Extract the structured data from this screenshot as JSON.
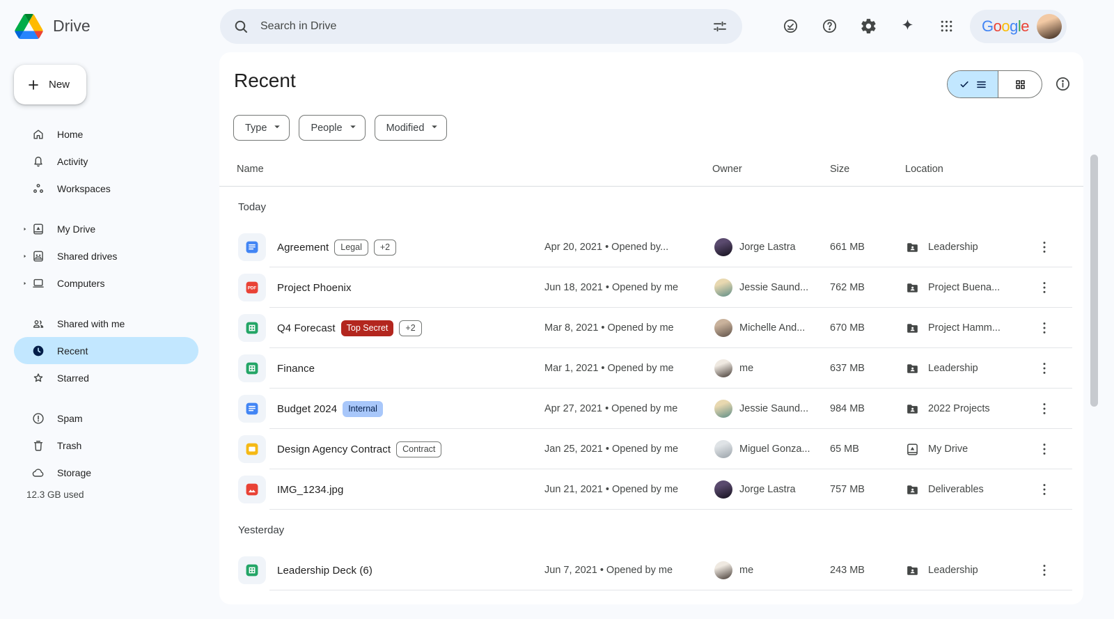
{
  "brand": {
    "app_name": "Drive"
  },
  "topbar": {
    "search_placeholder": "Search in Drive",
    "action_icons": [
      "offline-check",
      "help",
      "settings",
      "gemini-sparkle",
      "apps-grid"
    ],
    "account": {
      "google_letters": [
        [
          "G",
          "#4285F4"
        ],
        [
          "o",
          "#EA4335"
        ],
        [
          "o",
          "#FBBC04"
        ],
        [
          "g",
          "#4285F4"
        ],
        [
          "l",
          "#34A853"
        ],
        [
          "e",
          "#EA4335"
        ]
      ]
    }
  },
  "sidebar": {
    "new_button_label": "New",
    "sections": [
      [
        {
          "icon": "home",
          "label": "Home"
        },
        {
          "icon": "bell",
          "label": "Activity"
        },
        {
          "icon": "workspaces",
          "label": "Workspaces"
        }
      ],
      [
        {
          "icon": "my-drive",
          "label": "My Drive",
          "caret": true
        },
        {
          "icon": "shared-drives",
          "label": "Shared drives",
          "caret": true
        },
        {
          "icon": "computers",
          "label": "Computers",
          "caret": true
        }
      ],
      [
        {
          "icon": "people",
          "label": "Shared with me"
        },
        {
          "icon": "clock",
          "label": "Recent",
          "selected": true
        },
        {
          "icon": "star",
          "label": "Starred"
        }
      ],
      [
        {
          "icon": "spam",
          "label": "Spam"
        },
        {
          "icon": "trash",
          "label": "Trash"
        },
        {
          "icon": "cloud",
          "label": "Storage"
        }
      ]
    ],
    "storage_used": "12.3 GB used"
  },
  "main": {
    "title": "Recent",
    "filters": [
      "Type",
      "People",
      "Modified"
    ],
    "columns": {
      "name": "Name",
      "owner": "Owner",
      "size": "Size",
      "location": "Location"
    },
    "groups": [
      {
        "label": "Today",
        "rows": [
          {
            "name": "Agreement",
            "file_icon": "doc",
            "badges": [
              {
                "text": "Legal",
                "style": "outline"
              },
              {
                "text": "+2",
                "style": "outline"
              }
            ],
            "modified": "Apr 20, 2021  •  Opened by...",
            "owner": "Jorge Lastra",
            "avatar": "jorge",
            "size": "661 MB",
            "location": "Leadership",
            "location_icon": "shared-folder"
          },
          {
            "name": "Project Phoenix",
            "file_icon": "pdf",
            "badges": [],
            "modified": "Jun 18, 2021 • Opened by me",
            "owner": "Jessie Saund...",
            "avatar": "jessie",
            "size": "762 MB",
            "location": "Project Buena...",
            "location_icon": "shared-folder"
          },
          {
            "name": "Q4 Forecast",
            "file_icon": "sheet",
            "badges": [
              {
                "text": "Top Secret",
                "style": "danger"
              },
              {
                "text": "+2",
                "style": "outline"
              }
            ],
            "modified": "Mar 8, 2021  • Opened by me",
            "owner": "Michelle And...",
            "avatar": "michelle",
            "size": "670 MB",
            "location": "Project Hamm...",
            "location_icon": "shared-folder"
          },
          {
            "name": "Finance",
            "file_icon": "sheet",
            "badges": [],
            "modified": "Mar 1, 2021 • Opened by me",
            "owner": "me",
            "avatar": "me",
            "size": "637 MB",
            "location": "Leadership",
            "location_icon": "shared-folder"
          },
          {
            "name": "Budget 2024",
            "file_icon": "doc",
            "badges": [
              {
                "text": "Internal",
                "style": "info"
              }
            ],
            "modified": "Apr 27, 2021 • Opened by me",
            "owner": "Jessie Saund...",
            "avatar": "jessie",
            "size": "984 MB",
            "location": "2022 Projects",
            "location_icon": "shared-folder"
          },
          {
            "name": "Design Agency Contract",
            "file_icon": "slide",
            "badges": [
              {
                "text": "Contract",
                "style": "outline"
              }
            ],
            "modified": "Jan 25, 2021 • Opened by me",
            "owner": "Miguel Gonza...",
            "avatar": "miguel",
            "size": "65 MB",
            "location": "My Drive",
            "location_icon": "drive-outline"
          },
          {
            "name": "IMG_1234.jpg",
            "file_icon": "image",
            "badges": [],
            "modified": "Jun 21, 2021 • Opened by me",
            "owner": "Jorge Lastra",
            "avatar": "jorge",
            "size": "757 MB",
            "location": "Deliverables",
            "location_icon": "shared-folder"
          }
        ]
      },
      {
        "label": "Yesterday",
        "rows": [
          {
            "name": "Leadership Deck (6)",
            "file_icon": "sheet",
            "badges": [],
            "modified": "Jun 7, 2021 • Opened by me",
            "owner": "me",
            "avatar": "me",
            "size": "243 MB",
            "location": "Leadership",
            "location_icon": "shared-folder"
          }
        ]
      }
    ]
  },
  "avatars": {
    "jorge": [
      "#5a4a6e",
      "#14101c"
    ],
    "jessie": [
      "#e8d8b0",
      "#5e8d86"
    ],
    "michelle": [
      "#c9b29c",
      "#5f5148"
    ],
    "me": [
      "#efe9e1",
      "#453b35"
    ],
    "miguel": [
      "#dfe3e6",
      "#9aa2a9"
    ],
    "account": [
      "#f2c9a4",
      "#35241a"
    ]
  },
  "colors": {
    "page_bg": "#F8FAFD",
    "search_bg": "#E9EEF6",
    "selected_nav_bg": "#C2E7FF",
    "accent_blue": "#4285F4",
    "badge_top_secret_bg": "#B3261E",
    "badge_internal_bg": "#A8C7FA",
    "badge_internal_text": "#041E49"
  }
}
